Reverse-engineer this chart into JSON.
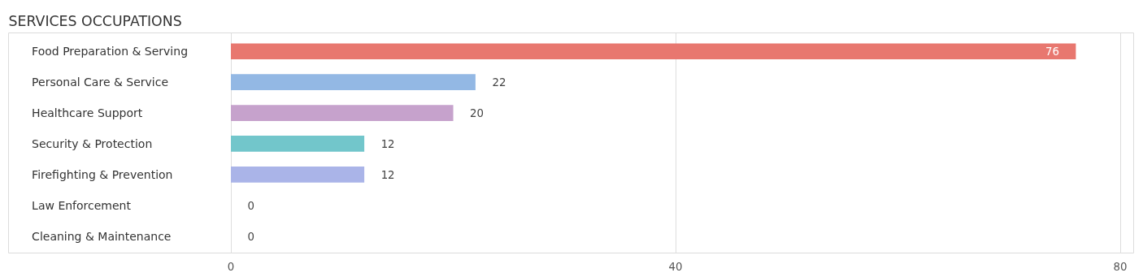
{
  "chart_data": {
    "type": "bar",
    "orientation": "horizontal",
    "title": "SERVICES OCCUPATIONS",
    "categories": [
      "Food Preparation & Serving",
      "Personal Care & Service",
      "Healthcare Support",
      "Security & Protection",
      "Firefighting & Prevention",
      "Law Enforcement",
      "Cleaning & Maintenance"
    ],
    "values": [
      76,
      22,
      20,
      12,
      12,
      0,
      0
    ],
    "colors": [
      "#e8776f",
      "#93b8e4",
      "#c6a2cc",
      "#72c6cb",
      "#aab4e8",
      "#f7a6c1",
      "#f9c99a"
    ],
    "xlim": [
      -20,
      81.2
    ],
    "xticks": [
      0,
      40,
      80
    ],
    "grid": "x",
    "data_labels": true
  }
}
